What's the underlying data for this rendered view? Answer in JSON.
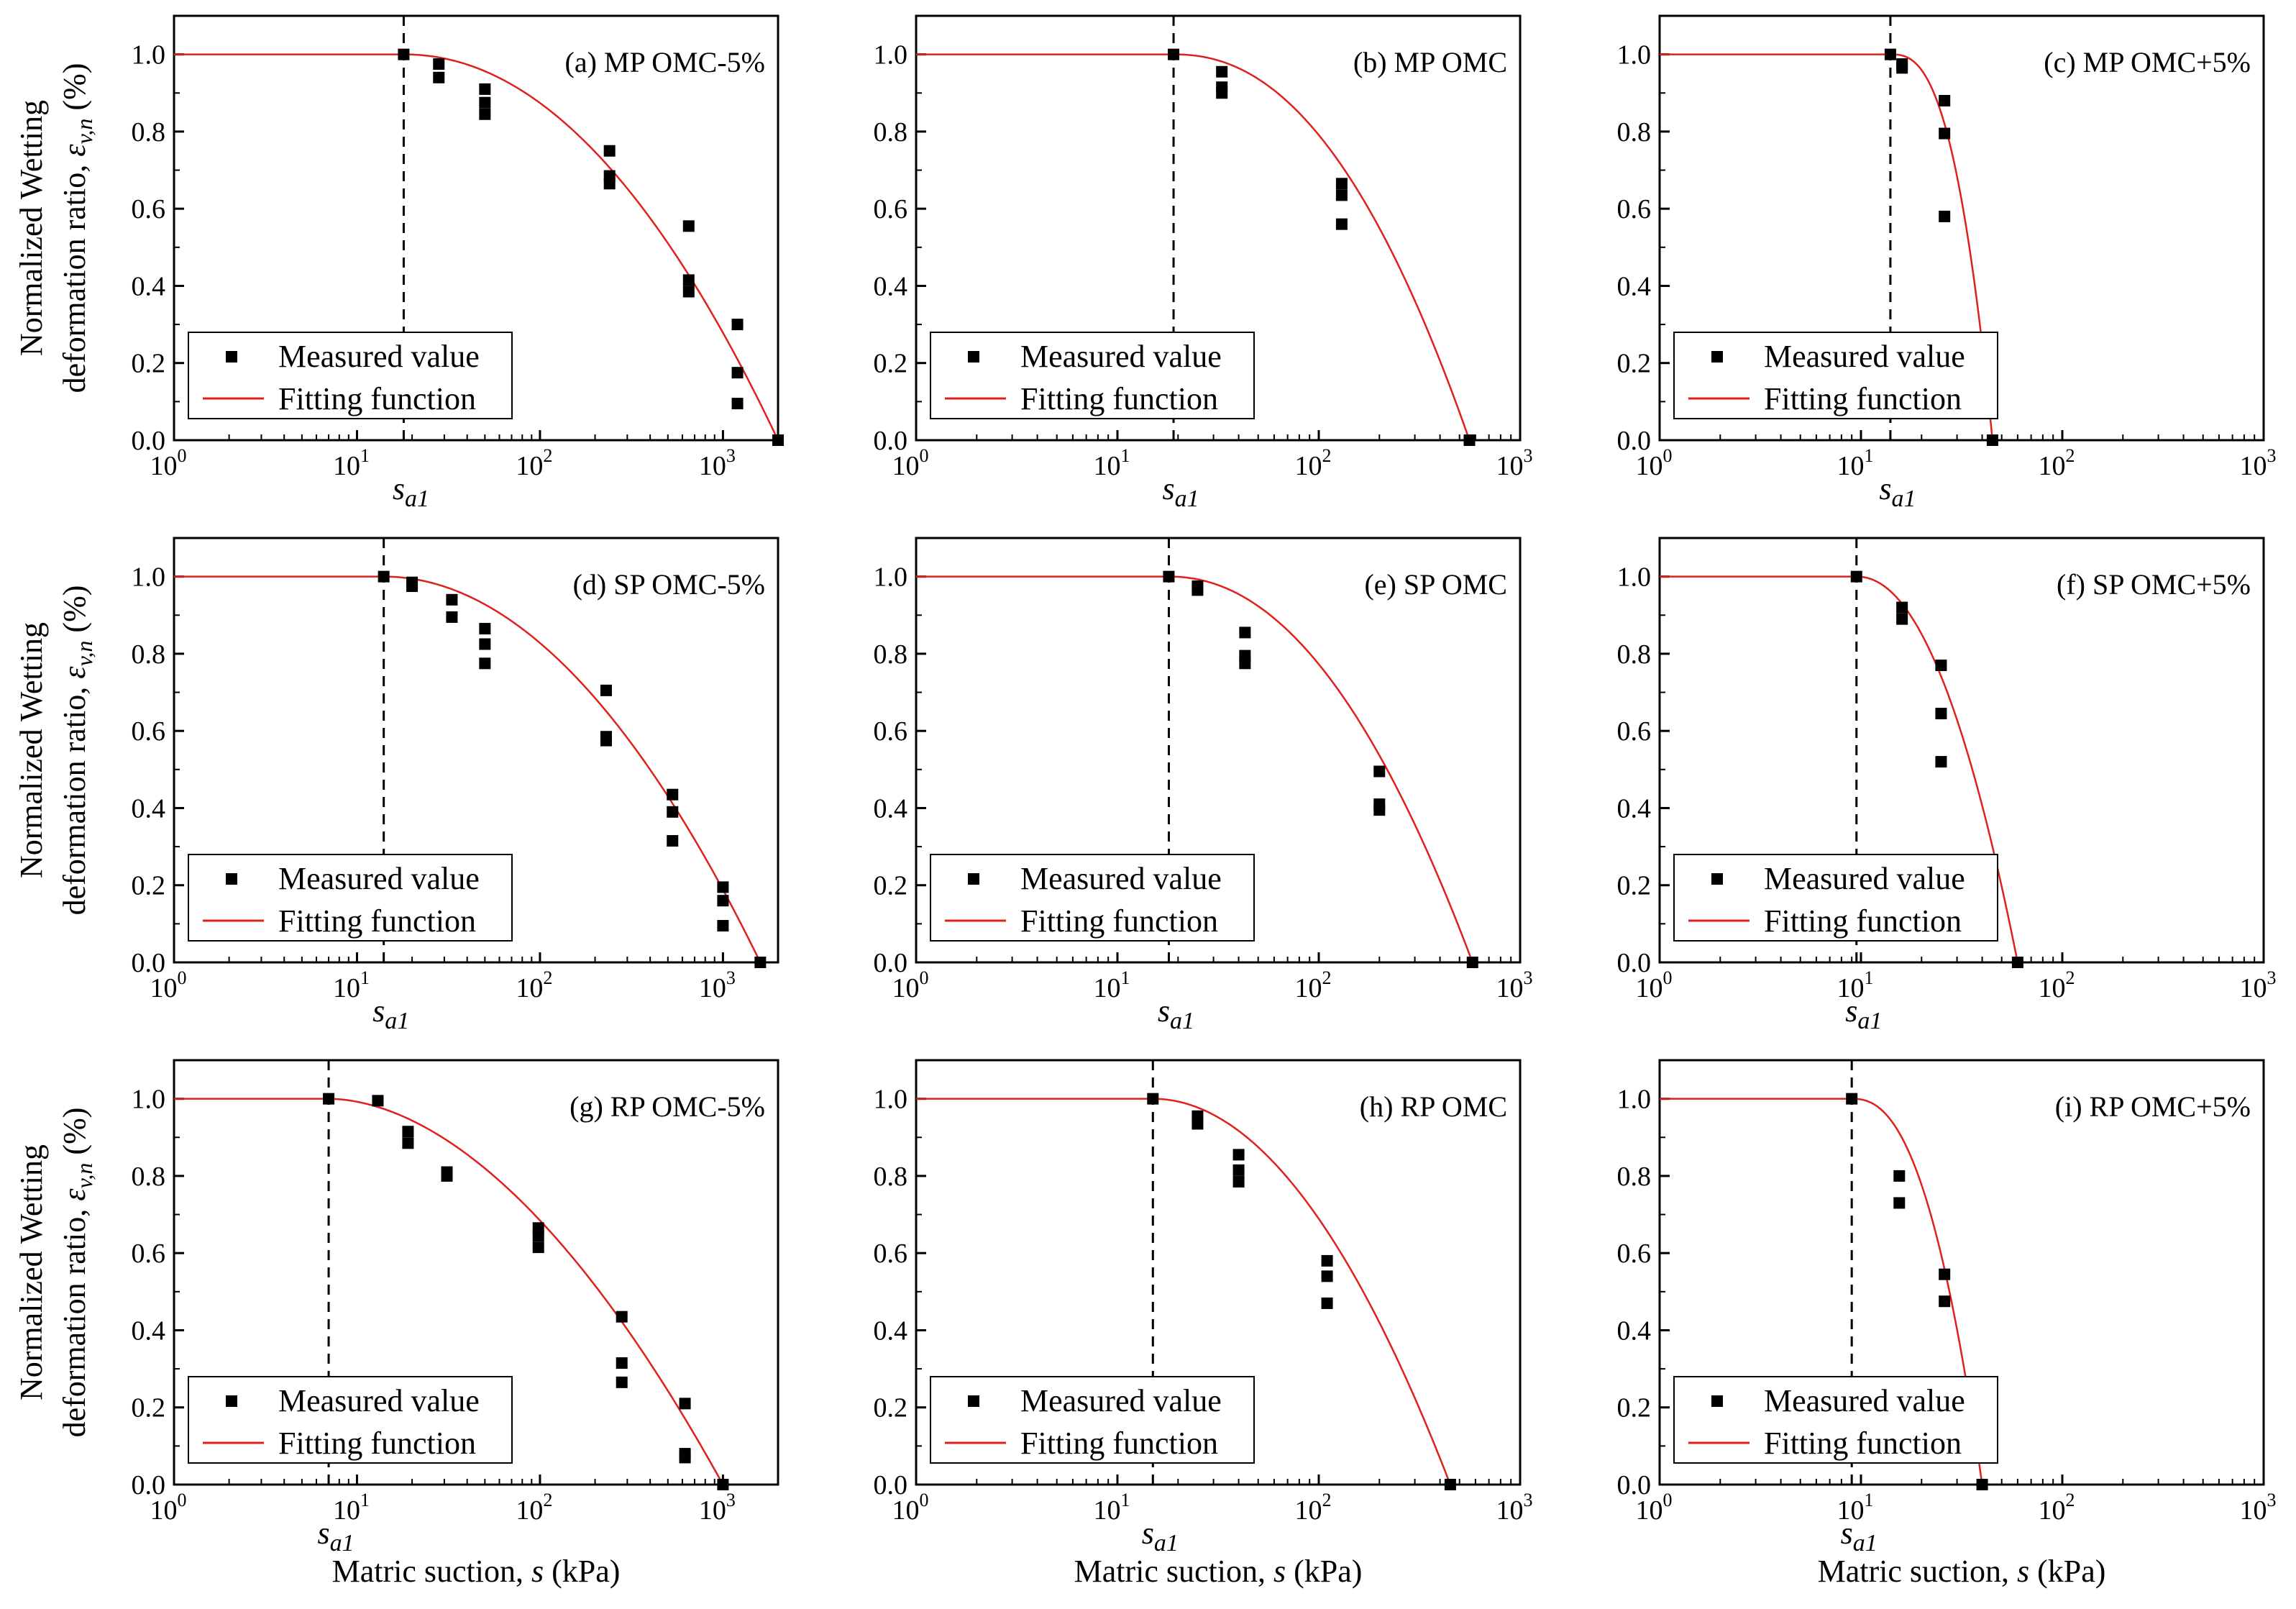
{
  "figure": {
    "y_axis_label_line1": "Normalized Wetting",
    "y_axis_label_line2_prefix": "deformation ratio, ",
    "y_axis_label_symbol": "ε",
    "y_axis_label_subscript": "v,n",
    "y_axis_label_unit": "(%)",
    "x_axis_label_prefix": "Matric suction, ",
    "x_axis_label_symbol": "s",
    "x_axis_label_unit": " (kPa)",
    "legend_measured": "Measured value",
    "legend_fitting": "Fitting function",
    "threshold_label_symbol": "s",
    "threshold_label_subscript": "a1",
    "y_tick_labels": [
      "0.0",
      "0.2",
      "0.4",
      "0.6",
      "0.8",
      "1.0"
    ],
    "x_tick_base": "10",
    "colors": {
      "fit_line": "#e0201b",
      "markers": "#000000",
      "threshold_line": "#000000"
    }
  },
  "chart_data": [
    {
      "id": "a",
      "title": "(a) MP OMC-5%",
      "type": "scatter",
      "x_scale": "log",
      "xlim": [
        1,
        2000
      ],
      "ylim": [
        0,
        1.1
      ],
      "x_ticks": [
        1,
        10,
        100,
        1000
      ],
      "x_tick_exponents": [
        "0",
        "1",
        "2",
        "3"
      ],
      "sa1": 18,
      "measured": [
        [
          18,
          1.0
        ],
        [
          28,
          0.975
        ],
        [
          28,
          0.94
        ],
        [
          50,
          0.91
        ],
        [
          50,
          0.875
        ],
        [
          50,
          0.845
        ],
        [
          240,
          0.75
        ],
        [
          240,
          0.685
        ],
        [
          240,
          0.665
        ],
        [
          650,
          0.555
        ],
        [
          650,
          0.415
        ],
        [
          650,
          0.385
        ],
        [
          1200,
          0.3
        ],
        [
          1200,
          0.175
        ],
        [
          1200,
          0.095
        ],
        [
          2000,
          0.0
        ]
      ],
      "fit": {
        "model": "1 - (log(s/sa1)/log(sr/sa1))^n",
        "sr": 2000,
        "n": 2.05
      }
    },
    {
      "id": "b",
      "title": "(b) MP OMC",
      "type": "scatter",
      "x_scale": "log",
      "xlim": [
        1,
        1000
      ],
      "ylim": [
        0,
        1.1
      ],
      "x_ticks": [
        1,
        10,
        100,
        1000
      ],
      "x_tick_exponents": [
        "0",
        "1",
        "2",
        "3"
      ],
      "sa1": 19,
      "measured": [
        [
          19,
          1.0
        ],
        [
          33,
          0.955
        ],
        [
          33,
          0.915
        ],
        [
          33,
          0.9
        ],
        [
          130,
          0.665
        ],
        [
          130,
          0.635
        ],
        [
          130,
          0.56
        ],
        [
          560,
          0.0
        ]
      ],
      "fit": {
        "model": "1 - (log(s/sa1)/log(sr/sa1))^n",
        "sr": 560,
        "n": 2.2
      }
    },
    {
      "id": "c",
      "title": "(c) MP OMC+5%",
      "type": "scatter",
      "x_scale": "log",
      "xlim": [
        1,
        1000
      ],
      "ylim": [
        0,
        1.1
      ],
      "x_ticks": [
        1,
        10,
        100,
        1000
      ],
      "x_tick_exponents": [
        "0",
        "1",
        "2",
        "3"
      ],
      "sa1": 14,
      "measured": [
        [
          14,
          1.0
        ],
        [
          16,
          0.975
        ],
        [
          16,
          0.965
        ],
        [
          26,
          0.88
        ],
        [
          26,
          0.795
        ],
        [
          26,
          0.58
        ],
        [
          45,
          0.0
        ]
      ],
      "fit": {
        "model": "1 - (log(s/sa1)/log(sr/sa1))^n",
        "sr": 45,
        "n": 2.7
      }
    },
    {
      "id": "d",
      "title": "(d) SP OMC-5%",
      "type": "scatter",
      "x_scale": "log",
      "xlim": [
        1,
        2000
      ],
      "ylim": [
        0,
        1.1
      ],
      "x_ticks": [
        1,
        10,
        100,
        1000
      ],
      "x_tick_exponents": [
        "0",
        "1",
        "2",
        "3"
      ],
      "sa1": 14,
      "measured": [
        [
          14,
          1.0
        ],
        [
          20,
          0.985
        ],
        [
          20,
          0.975
        ],
        [
          33,
          0.94
        ],
        [
          33,
          0.895
        ],
        [
          50,
          0.865
        ],
        [
          50,
          0.825
        ],
        [
          50,
          0.775
        ],
        [
          230,
          0.705
        ],
        [
          230,
          0.585
        ],
        [
          230,
          0.575
        ],
        [
          530,
          0.435
        ],
        [
          530,
          0.39
        ],
        [
          530,
          0.315
        ],
        [
          1000,
          0.195
        ],
        [
          1000,
          0.16
        ],
        [
          1000,
          0.095
        ],
        [
          1600,
          0.0
        ]
      ],
      "fit": {
        "model": "1 - (log(s/sa1)/log(sr/sa1))^n",
        "sr": 1600,
        "n": 2.0
      }
    },
    {
      "id": "e",
      "title": "(e) SP OMC",
      "type": "scatter",
      "x_scale": "log",
      "xlim": [
        1,
        1000
      ],
      "ylim": [
        0,
        1.1
      ],
      "x_ticks": [
        1,
        10,
        100,
        1000
      ],
      "x_tick_exponents": [
        "0",
        "1",
        "2",
        "3"
      ],
      "sa1": 18,
      "measured": [
        [
          18,
          1.0
        ],
        [
          25,
          0.975
        ],
        [
          25,
          0.965
        ],
        [
          43,
          0.855
        ],
        [
          43,
          0.795
        ],
        [
          43,
          0.775
        ],
        [
          200,
          0.495
        ],
        [
          200,
          0.41
        ],
        [
          200,
          0.395
        ],
        [
          580,
          0.0
        ]
      ],
      "fit": {
        "model": "1 - (log(s/sa1)/log(sr/sa1))^n",
        "sr": 580,
        "n": 2.1
      }
    },
    {
      "id": "f",
      "title": "(f) SP OMC+5%",
      "type": "scatter",
      "x_scale": "log",
      "xlim": [
        1,
        1000
      ],
      "ylim": [
        0,
        1.1
      ],
      "x_ticks": [
        1,
        10,
        100,
        1000
      ],
      "x_tick_exponents": [
        "0",
        "1",
        "2",
        "3"
      ],
      "sa1": 9.5,
      "measured": [
        [
          9.5,
          1.0
        ],
        [
          16,
          0.92
        ],
        [
          16,
          0.89
        ],
        [
          25,
          0.77
        ],
        [
          25,
          0.645
        ],
        [
          25,
          0.52
        ],
        [
          60,
          0.0
        ]
      ],
      "fit": {
        "model": "1 - (log(s/sa1)/log(sr/sa1))^n",
        "sr": 60,
        "n": 2.1
      }
    },
    {
      "id": "g",
      "title": "(g) RP OMC-5%",
      "type": "scatter",
      "x_scale": "log",
      "xlim": [
        1,
        2000
      ],
      "ylim": [
        0,
        1.1
      ],
      "x_ticks": [
        1,
        10,
        100,
        1000
      ],
      "x_tick_exponents": [
        "0",
        "1",
        "2",
        "3"
      ],
      "sa1": 7,
      "measured": [
        [
          7,
          1.0
        ],
        [
          13,
          0.995
        ],
        [
          19,
          0.915
        ],
        [
          19,
          0.885
        ],
        [
          31,
          0.81
        ],
        [
          31,
          0.8
        ],
        [
          98,
          0.665
        ],
        [
          98,
          0.645
        ],
        [
          98,
          0.615
        ],
        [
          280,
          0.435
        ],
        [
          280,
          0.315
        ],
        [
          280,
          0.265
        ],
        [
          620,
          0.21
        ],
        [
          620,
          0.08
        ],
        [
          620,
          0.07
        ],
        [
          1000,
          0.0
        ]
      ],
      "fit": {
        "model": "1 - (log(s/sa1)/log(sr/sa1))^n",
        "sr": 1000,
        "n": 1.85
      }
    },
    {
      "id": "h",
      "title": "(h) RP OMC",
      "type": "scatter",
      "x_scale": "log",
      "xlim": [
        1,
        1000
      ],
      "ylim": [
        0,
        1.1
      ],
      "x_ticks": [
        1,
        10,
        100,
        1000
      ],
      "x_tick_exponents": [
        "0",
        "1",
        "2",
        "3"
      ],
      "sa1": 15,
      "measured": [
        [
          15,
          1.0
        ],
        [
          25,
          0.955
        ],
        [
          25,
          0.935
        ],
        [
          40,
          0.855
        ],
        [
          40,
          0.815
        ],
        [
          40,
          0.785
        ],
        [
          110,
          0.58
        ],
        [
          110,
          0.54
        ],
        [
          110,
          0.47
        ],
        [
          450,
          0.0
        ]
      ],
      "fit": {
        "model": "1 - (log(s/sa1)/log(sr/sa1))^n",
        "sr": 450,
        "n": 2.0
      }
    },
    {
      "id": "i",
      "title": "(i) RP OMC+5%",
      "type": "scatter",
      "x_scale": "log",
      "xlim": [
        1,
        1000
      ],
      "ylim": [
        0,
        1.1
      ],
      "x_ticks": [
        1,
        10,
        100,
        1000
      ],
      "x_tick_exponents": [
        "0",
        "1",
        "2",
        "3"
      ],
      "sa1": 9,
      "measured": [
        [
          9,
          1.0
        ],
        [
          15.5,
          0.8
        ],
        [
          15.5,
          0.73
        ],
        [
          26,
          0.545
        ],
        [
          26,
          0.475
        ],
        [
          40,
          0.0
        ]
      ],
      "fit": {
        "model": "1 - (log(s/sa1)/log(sr/sa1))^n",
        "sr": 40,
        "n": 2.4
      }
    }
  ]
}
